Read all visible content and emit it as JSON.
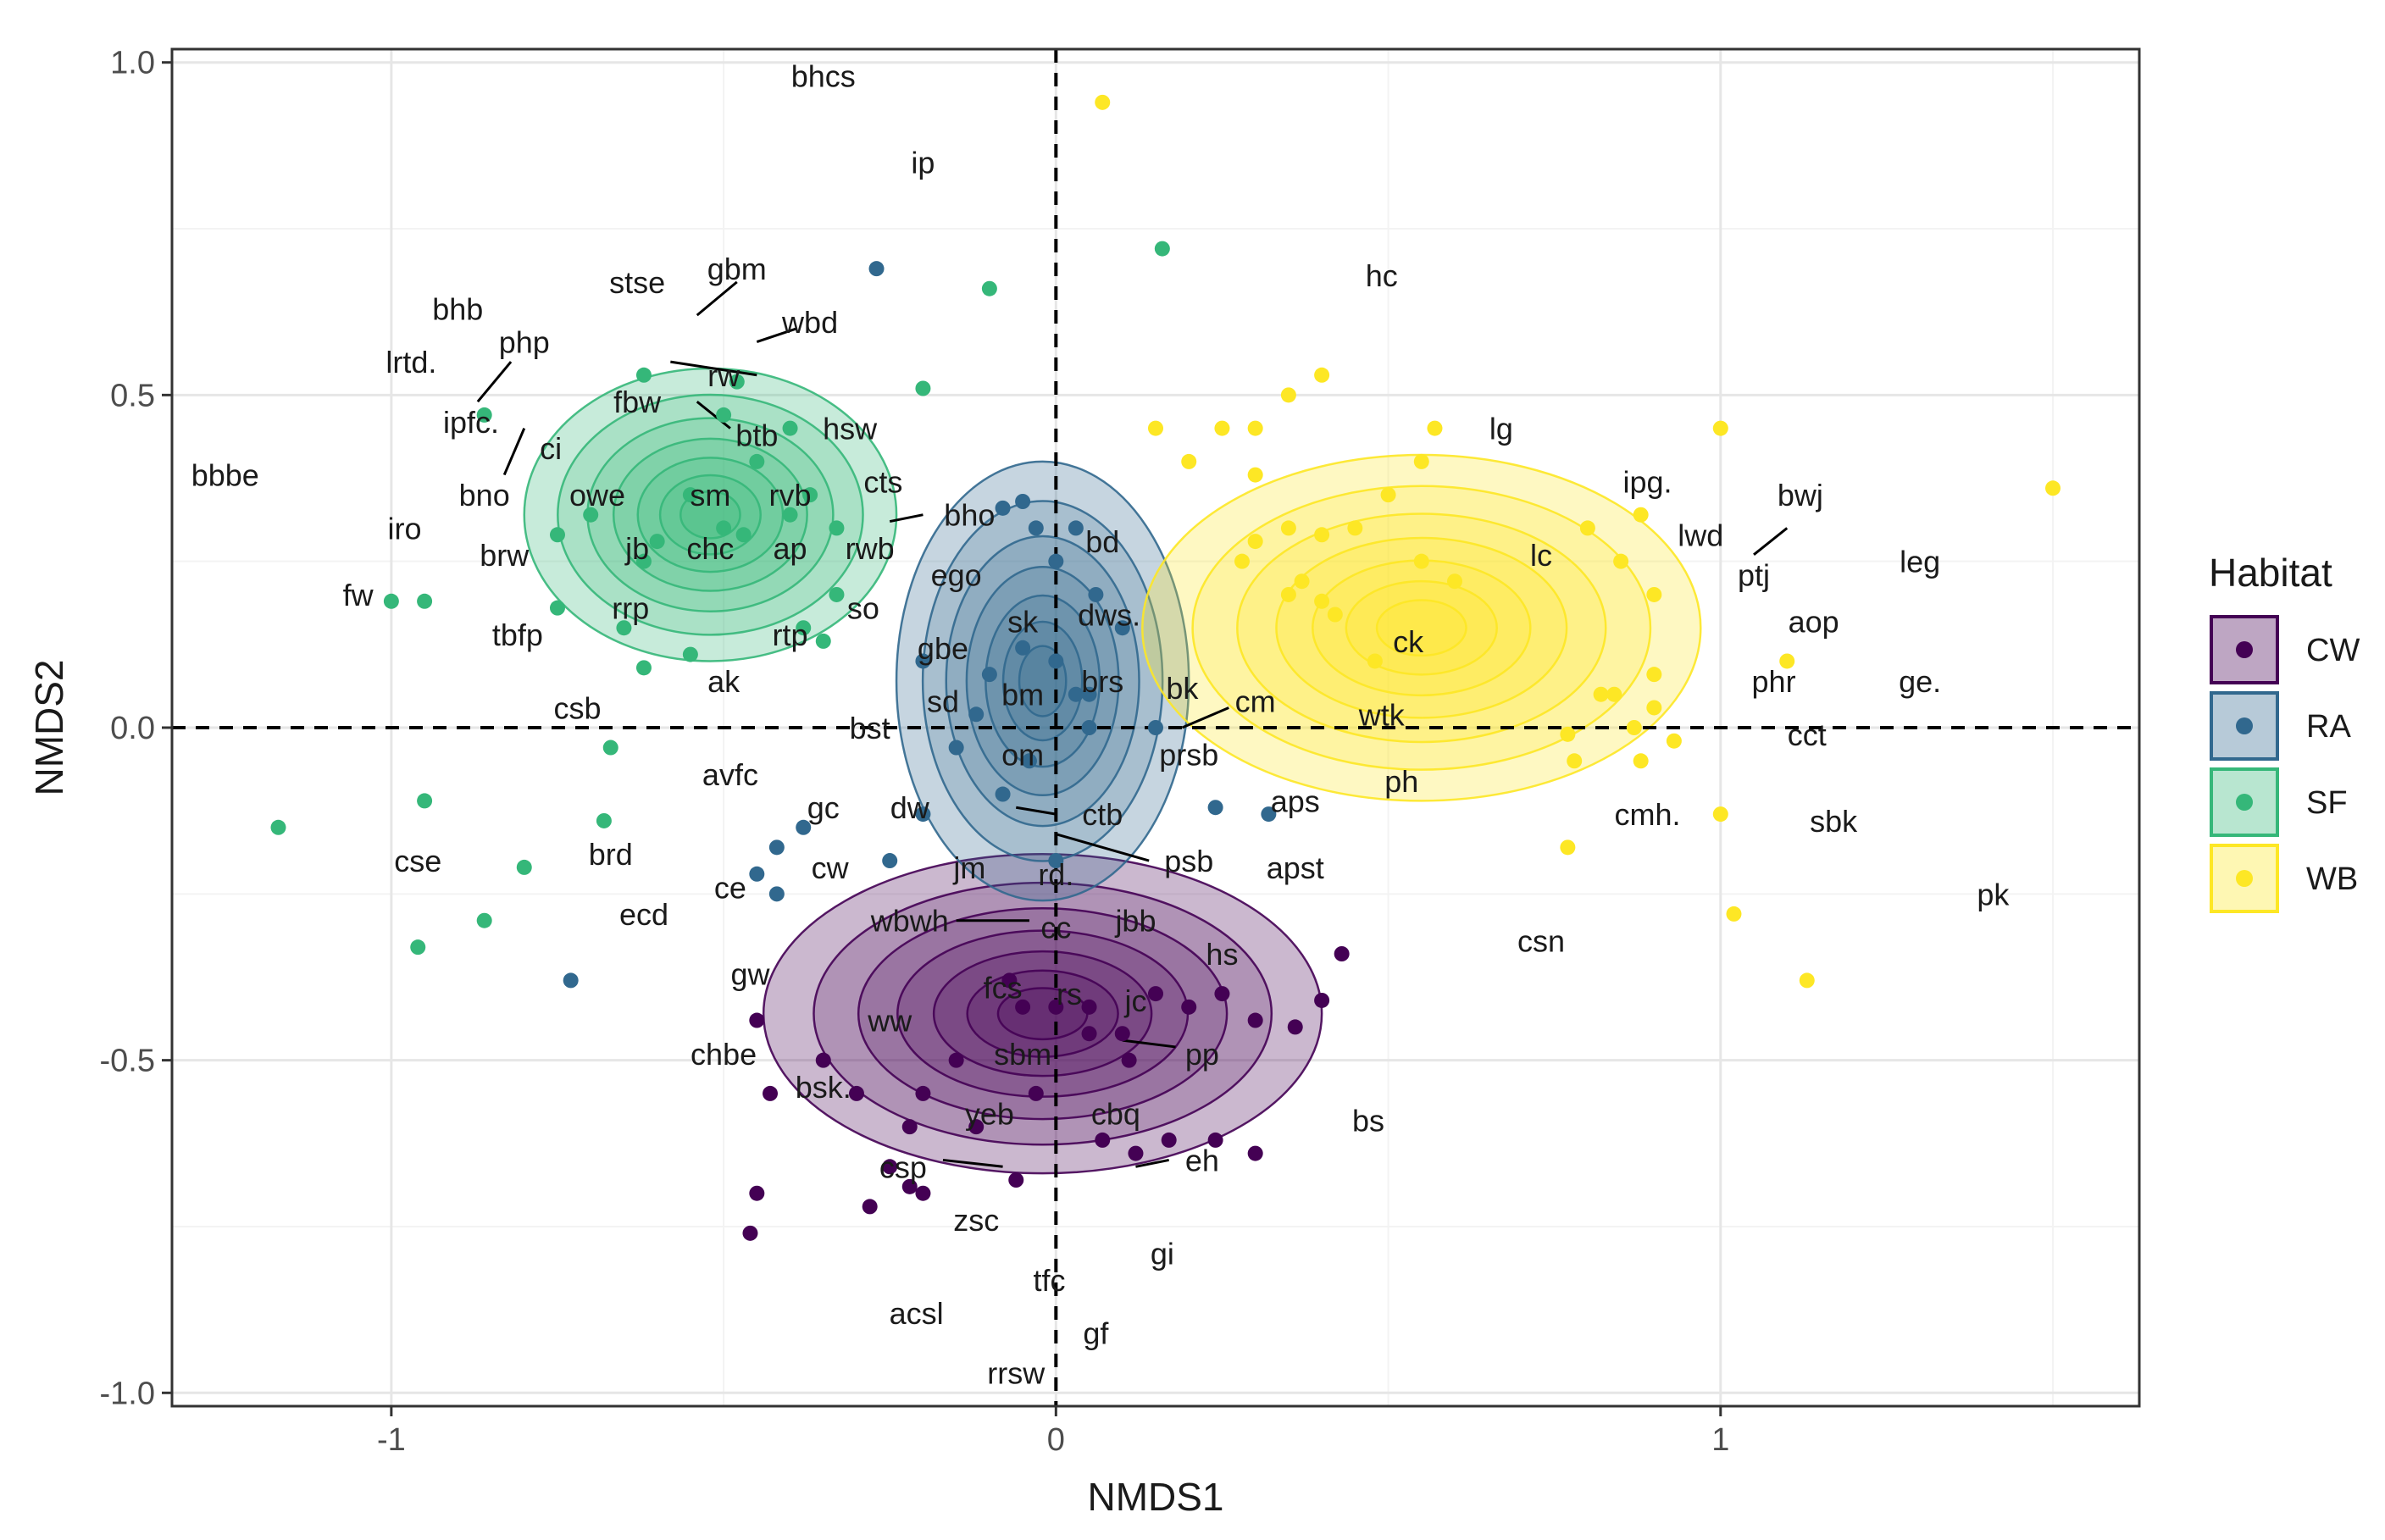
{
  "chart_data": {
    "type": "scatter",
    "subtype": "NMDS ordination with density contours",
    "xlabel": "NMDS1",
    "ylabel": "NMDS2",
    "xlim": [
      -1.33,
      1.63
    ],
    "ylim": [
      -1.02,
      1.02
    ],
    "x_ticks": [
      -1,
      0,
      1
    ],
    "y_ticks": [
      -1.0,
      -0.5,
      0.0,
      0.5,
      1.0
    ],
    "x_tick_labels": [
      "-1",
      "0",
      "1"
    ],
    "y_tick_labels": [
      "-1.0",
      "-0.5",
      "0.0",
      "0.5",
      "1.0"
    ],
    "grid": true,
    "reference_lines": {
      "x": 0,
      "y": 0,
      "style": "dashed"
    },
    "legend": {
      "title": "Habitat",
      "position": "right",
      "entries": [
        {
          "name": "CW",
          "color": "#440154"
        },
        {
          "name": "RA",
          "color": "#31688e"
        },
        {
          "name": "SF",
          "color": "#35b779"
        },
        {
          "name": "WB",
          "color": "#fde725"
        }
      ]
    },
    "series": [
      {
        "name": "CW",
        "color": "#440154",
        "center": [
          -0.02,
          -0.43
        ],
        "spread": [
          0.42,
          0.24
        ],
        "points": [
          [
            -0.45,
            -0.44
          ],
          [
            -0.35,
            -0.5
          ],
          [
            -0.3,
            -0.55
          ],
          [
            -0.2,
            -0.55
          ],
          [
            -0.22,
            -0.6
          ],
          [
            -0.22,
            -0.69
          ],
          [
            -0.45,
            -0.7
          ],
          [
            -0.25,
            -0.66
          ],
          [
            -0.2,
            -0.7
          ],
          [
            -0.03,
            -0.55
          ],
          [
            -0.12,
            -0.6
          ],
          [
            -0.15,
            -0.5
          ],
          [
            -0.07,
            -0.38
          ],
          [
            -0.05,
            -0.42
          ],
          [
            0.0,
            -0.42
          ],
          [
            0.05,
            -0.42
          ],
          [
            0.05,
            -0.46
          ],
          [
            0.1,
            -0.46
          ],
          [
            0.15,
            -0.4
          ],
          [
            0.2,
            -0.42
          ],
          [
            0.25,
            -0.4
          ],
          [
            0.3,
            -0.44
          ],
          [
            0.4,
            -0.41
          ],
          [
            0.43,
            -0.34
          ],
          [
            0.07,
            -0.62
          ],
          [
            0.12,
            -0.64
          ],
          [
            0.17,
            -0.62
          ],
          [
            0.24,
            -0.62
          ],
          [
            0.3,
            -0.64
          ],
          [
            0.36,
            -0.45
          ],
          [
            -0.43,
            -0.55
          ],
          [
            -0.28,
            -0.72
          ],
          [
            -0.06,
            -0.68
          ],
          [
            0.11,
            -0.5
          ],
          [
            -0.46,
            -0.76
          ]
        ]
      },
      {
        "name": "RA",
        "color": "#31688e",
        "center": [
          -0.02,
          0.07
        ],
        "spread": [
          0.22,
          0.33
        ],
        "points": [
          [
            -0.27,
            0.69
          ],
          [
            -0.05,
            0.34
          ],
          [
            -0.08,
            0.33
          ],
          [
            -0.2,
            0.1
          ],
          [
            -0.05,
            0.12
          ],
          [
            0.0,
            0.1
          ],
          [
            0.05,
            0.0
          ],
          [
            -0.04,
            -0.05
          ],
          [
            0.03,
            0.05
          ],
          [
            -0.15,
            -0.03
          ],
          [
            -0.08,
            -0.1
          ],
          [
            -0.12,
            0.02
          ],
          [
            0.0,
            0.25
          ],
          [
            0.03,
            0.3
          ],
          [
            -0.03,
            0.3
          ],
          [
            0.06,
            0.2
          ],
          [
            0.1,
            0.15
          ],
          [
            -0.42,
            -0.18
          ],
          [
            -0.38,
            -0.15
          ],
          [
            -0.45,
            -0.22
          ],
          [
            -0.2,
            -0.13
          ],
          [
            -0.42,
            -0.25
          ],
          [
            -0.73,
            -0.38
          ],
          [
            0.32,
            -0.13
          ],
          [
            0.24,
            -0.12
          ],
          [
            -0.25,
            -0.2
          ],
          [
            0.0,
            -0.2
          ],
          [
            0.05,
            0.05
          ],
          [
            -0.1,
            0.08
          ],
          [
            0.15,
            0.0
          ]
        ]
      },
      {
        "name": "SF",
        "color": "#35b779",
        "center": [
          -0.52,
          0.32
        ],
        "spread": [
          0.28,
          0.22
        ],
        "points": [
          [
            -1.0,
            0.19
          ],
          [
            -0.95,
            0.19
          ],
          [
            -0.86,
            0.47
          ],
          [
            -0.75,
            0.29
          ],
          [
            -0.7,
            0.32
          ],
          [
            -0.6,
            0.28
          ],
          [
            -0.62,
            0.25
          ],
          [
            -0.5,
            0.3
          ],
          [
            -0.47,
            0.29
          ],
          [
            -0.55,
            0.35
          ],
          [
            -0.4,
            0.32
          ],
          [
            -0.37,
            0.35
          ],
          [
            -0.33,
            0.3
          ],
          [
            -0.33,
            0.2
          ],
          [
            -0.38,
            0.15
          ],
          [
            -0.45,
            0.4
          ],
          [
            -0.48,
            0.52
          ],
          [
            -0.5,
            0.47
          ],
          [
            -0.62,
            0.53
          ],
          [
            -0.4,
            0.45
          ],
          [
            -0.2,
            0.51
          ],
          [
            -0.1,
            0.66
          ],
          [
            0.16,
            0.72
          ],
          [
            -0.62,
            0.09
          ],
          [
            -0.55,
            0.11
          ],
          [
            -0.75,
            0.18
          ],
          [
            -0.65,
            0.15
          ],
          [
            -0.67,
            -0.03
          ],
          [
            -0.68,
            -0.14
          ],
          [
            -0.8,
            -0.21
          ],
          [
            -0.86,
            -0.29
          ],
          [
            -0.95,
            -0.11
          ],
          [
            -0.96,
            -0.33
          ],
          [
            -1.17,
            -0.15
          ],
          [
            -0.35,
            0.13
          ]
        ]
      },
      {
        "name": "WB",
        "color": "#fde725",
        "center": [
          0.55,
          0.15
        ],
        "spread": [
          0.42,
          0.26
        ],
        "points": [
          [
            0.07,
            0.94
          ],
          [
            0.35,
            0.5
          ],
          [
            0.4,
            0.53
          ],
          [
            0.3,
            0.45
          ],
          [
            0.15,
            0.45
          ],
          [
            0.25,
            0.45
          ],
          [
            0.2,
            0.4
          ],
          [
            0.3,
            0.38
          ],
          [
            0.3,
            0.28
          ],
          [
            0.35,
            0.3
          ],
          [
            0.4,
            0.29
          ],
          [
            0.45,
            0.3
          ],
          [
            0.55,
            0.4
          ],
          [
            0.5,
            0.35
          ],
          [
            0.55,
            0.25
          ],
          [
            0.57,
            0.45
          ],
          [
            0.6,
            0.22
          ],
          [
            0.35,
            0.2
          ],
          [
            0.4,
            0.19
          ],
          [
            0.37,
            0.22
          ],
          [
            0.28,
            0.25
          ],
          [
            0.42,
            0.17
          ],
          [
            0.8,
            0.3
          ],
          [
            0.85,
            0.25
          ],
          [
            0.9,
            0.2
          ],
          [
            0.82,
            0.05
          ],
          [
            0.84,
            0.05
          ],
          [
            0.9,
            0.08
          ],
          [
            0.9,
            0.03
          ],
          [
            0.87,
            0.0
          ],
          [
            0.93,
            -0.02
          ],
          [
            0.88,
            -0.05
          ],
          [
            0.78,
            -0.05
          ],
          [
            0.77,
            -0.01
          ],
          [
            1.0,
            0.45
          ],
          [
            1.1,
            0.1
          ],
          [
            1.0,
            -0.13
          ],
          [
            1.02,
            -0.28
          ],
          [
            1.13,
            -0.38
          ],
          [
            0.77,
            -0.18
          ],
          [
            1.5,
            0.36
          ],
          [
            0.88,
            0.32
          ],
          [
            0.48,
            0.1
          ]
        ]
      }
    ],
    "species_labels": [
      {
        "text": "bhcs",
        "x": -0.35,
        "y": 0.98
      },
      {
        "text": "ip",
        "x": -0.2,
        "y": 0.85
      },
      {
        "text": "hc",
        "x": 0.49,
        "y": 0.68
      },
      {
        "text": "stse",
        "x": -0.63,
        "y": 0.67
      },
      {
        "text": "gbm",
        "x": -0.48,
        "y": 0.69
      },
      {
        "text": "bhb",
        "x": -0.9,
        "y": 0.63
      },
      {
        "text": "wbd",
        "x": -0.37,
        "y": 0.61
      },
      {
        "text": "php",
        "x": -0.8,
        "y": 0.58
      },
      {
        "text": "lrtd.",
        "x": -0.97,
        "y": 0.55
      },
      {
        "text": "rw",
        "x": -0.5,
        "y": 0.53
      },
      {
        "text": "fbw",
        "x": -0.63,
        "y": 0.49
      },
      {
        "text": "ipfc.",
        "x": -0.88,
        "y": 0.46
      },
      {
        "text": "btb",
        "x": -0.45,
        "y": 0.44
      },
      {
        "text": "hsw",
        "x": -0.31,
        "y": 0.45
      },
      {
        "text": "ci",
        "x": -0.76,
        "y": 0.42
      },
      {
        "text": "bbbe",
        "x": -1.25,
        "y": 0.38
      },
      {
        "text": "cts",
        "x": -0.26,
        "y": 0.37
      },
      {
        "text": "bno",
        "x": -0.86,
        "y": 0.35
      },
      {
        "text": "owe",
        "x": -0.69,
        "y": 0.35
      },
      {
        "text": "sm",
        "x": -0.52,
        "y": 0.35
      },
      {
        "text": "rvb",
        "x": -0.4,
        "y": 0.35
      },
      {
        "text": "bho",
        "x": -0.13,
        "y": 0.32
      },
      {
        "text": "iro",
        "x": -0.98,
        "y": 0.3
      },
      {
        "text": "jb",
        "x": -0.63,
        "y": 0.27
      },
      {
        "text": "chc",
        "x": -0.52,
        "y": 0.27
      },
      {
        "text": "ap",
        "x": -0.4,
        "y": 0.27
      },
      {
        "text": "rwb",
        "x": -0.28,
        "y": 0.27
      },
      {
        "text": "brw",
        "x": -0.83,
        "y": 0.26
      },
      {
        "text": "ego",
        "x": -0.15,
        "y": 0.23
      },
      {
        "text": "bd",
        "x": 0.07,
        "y": 0.28
      },
      {
        "text": "fw",
        "x": -1.05,
        "y": 0.2
      },
      {
        "text": "rrp",
        "x": -0.64,
        "y": 0.18
      },
      {
        "text": "so",
        "x": -0.29,
        "y": 0.18
      },
      {
        "text": "dws.",
        "x": 0.08,
        "y": 0.17
      },
      {
        "text": "sk",
        "x": -0.05,
        "y": 0.16
      },
      {
        "text": "tbfp",
        "x": -0.81,
        "y": 0.14
      },
      {
        "text": "rtp",
        "x": -0.4,
        "y": 0.14
      },
      {
        "text": "gbe",
        "x": -0.17,
        "y": 0.12
      },
      {
        "text": "ak",
        "x": -0.5,
        "y": 0.07
      },
      {
        "text": "brs",
        "x": 0.07,
        "y": 0.07
      },
      {
        "text": "sd",
        "x": -0.17,
        "y": 0.04
      },
      {
        "text": "bm",
        "x": -0.05,
        "y": 0.05
      },
      {
        "text": "bk",
        "x": 0.19,
        "y": 0.06
      },
      {
        "text": "cm",
        "x": 0.3,
        "y": 0.04
      },
      {
        "text": "csb",
        "x": -0.72,
        "y": 0.03
      },
      {
        "text": "wtk",
        "x": 0.49,
        "y": 0.02
      },
      {
        "text": "bst",
        "x": -0.28,
        "y": 0.0
      },
      {
        "text": "om",
        "x": -0.05,
        "y": -0.04
      },
      {
        "text": "prsb",
        "x": 0.2,
        "y": -0.04
      },
      {
        "text": "ph",
        "x": 0.52,
        "y": -0.08
      },
      {
        "text": "avfc",
        "x": -0.49,
        "y": -0.07
      },
      {
        "text": "aps",
        "x": 0.36,
        "y": -0.11
      },
      {
        "text": "gc",
        "x": -0.35,
        "y": -0.12
      },
      {
        "text": "dw",
        "x": -0.22,
        "y": -0.12
      },
      {
        "text": "ctb",
        "x": 0.07,
        "y": -0.13
      },
      {
        "text": "cse",
        "x": -0.96,
        "y": -0.2
      },
      {
        "text": "brd",
        "x": -0.67,
        "y": -0.19
      },
      {
        "text": "psb",
        "x": 0.2,
        "y": -0.2
      },
      {
        "text": "apst",
        "x": 0.36,
        "y": -0.21
      },
      {
        "text": "cw",
        "x": -0.34,
        "y": -0.21
      },
      {
        "text": "jm",
        "x": -0.13,
        "y": -0.21
      },
      {
        "text": "rd.",
        "x": 0.0,
        "y": -0.22
      },
      {
        "text": "ce",
        "x": -0.49,
        "y": -0.24
      },
      {
        "text": "ecd",
        "x": -0.62,
        "y": -0.28
      },
      {
        "text": "wbwh",
        "x": -0.22,
        "y": -0.29
      },
      {
        "text": "cc",
        "x": 0.0,
        "y": -0.3
      },
      {
        "text": "jbb",
        "x": 0.12,
        "y": -0.29
      },
      {
        "text": "hs",
        "x": 0.25,
        "y": -0.34
      },
      {
        "text": "gw",
        "x": -0.46,
        "y": -0.37
      },
      {
        "text": "fcs",
        "x": -0.08,
        "y": -0.39
      },
      {
        "text": "rs",
        "x": 0.02,
        "y": -0.4
      },
      {
        "text": "jc",
        "x": 0.12,
        "y": -0.41
      },
      {
        "text": "ww",
        "x": -0.25,
        "y": -0.44
      },
      {
        "text": "sbm",
        "x": -0.05,
        "y": -0.49
      },
      {
        "text": "pp",
        "x": 0.22,
        "y": -0.49
      },
      {
        "text": "chbe",
        "x": -0.5,
        "y": -0.49
      },
      {
        "text": "bsk.",
        "x": -0.35,
        "y": -0.54
      },
      {
        "text": "yeb",
        "x": -0.1,
        "y": -0.58
      },
      {
        "text": "cbq",
        "x": 0.09,
        "y": -0.58
      },
      {
        "text": "bs",
        "x": 0.47,
        "y": -0.59
      },
      {
        "text": "csp",
        "x": -0.23,
        "y": -0.66
      },
      {
        "text": "eh",
        "x": 0.22,
        "y": -0.65
      },
      {
        "text": "zsc",
        "x": -0.12,
        "y": -0.74
      },
      {
        "text": "gi",
        "x": 0.16,
        "y": -0.79
      },
      {
        "text": "tfc",
        "x": -0.01,
        "y": -0.83
      },
      {
        "text": "acsl",
        "x": -0.21,
        "y": -0.88
      },
      {
        "text": "gf",
        "x": 0.06,
        "y": -0.91
      },
      {
        "text": "rrsw",
        "x": -0.06,
        "y": -0.97
      },
      {
        "text": "lg",
        "x": 0.67,
        "y": 0.45
      },
      {
        "text": "ipg.",
        "x": 0.89,
        "y": 0.37
      },
      {
        "text": "bwj",
        "x": 1.12,
        "y": 0.35
      },
      {
        "text": "lwd",
        "x": 0.97,
        "y": 0.29
      },
      {
        "text": "lc",
        "x": 0.73,
        "y": 0.26
      },
      {
        "text": "ptj",
        "x": 1.05,
        "y": 0.23
      },
      {
        "text": "leg",
        "x": 1.3,
        "y": 0.25
      },
      {
        "text": "aop",
        "x": 1.14,
        "y": 0.16
      },
      {
        "text": "ck",
        "x": 0.53,
        "y": 0.13
      },
      {
        "text": "phr",
        "x": 1.08,
        "y": 0.07
      },
      {
        "text": "ge.",
        "x": 1.3,
        "y": 0.07
      },
      {
        "text": "cct",
        "x": 1.13,
        "y": -0.01
      },
      {
        "text": "cmh.",
        "x": 0.89,
        "y": -0.13
      },
      {
        "text": "sbk",
        "x": 1.17,
        "y": -0.14
      },
      {
        "text": "pk",
        "x": 1.41,
        "y": -0.25
      },
      {
        "text": "csn",
        "x": 0.73,
        "y": -0.32
      }
    ],
    "leader_lines": [
      [
        -0.48,
        0.67,
        -0.54,
        0.62
      ],
      [
        -0.39,
        0.6,
        -0.45,
        0.58
      ],
      [
        -0.82,
        0.55,
        -0.87,
        0.49
      ],
      [
        -0.58,
        0.55,
        -0.45,
        0.53
      ],
      [
        -0.54,
        0.49,
        -0.49,
        0.45
      ],
      [
        -0.8,
        0.45,
        -0.83,
        0.38
      ],
      [
        -0.2,
        0.32,
        -0.25,
        0.31
      ],
      [
        1.1,
        0.3,
        1.05,
        0.26
      ],
      [
        0.26,
        0.03,
        0.19,
        0.0
      ],
      [
        -0.06,
        -0.12,
        0.0,
        -0.13
      ],
      [
        0.14,
        -0.2,
        0.0,
        -0.16
      ],
      [
        -0.15,
        -0.29,
        -0.04,
        -0.29
      ],
      [
        0.18,
        -0.48,
        0.1,
        -0.47
      ],
      [
        -0.17,
        -0.65,
        -0.08,
        -0.66
      ],
      [
        0.17,
        -0.65,
        0.12,
        -0.66
      ]
    ]
  }
}
